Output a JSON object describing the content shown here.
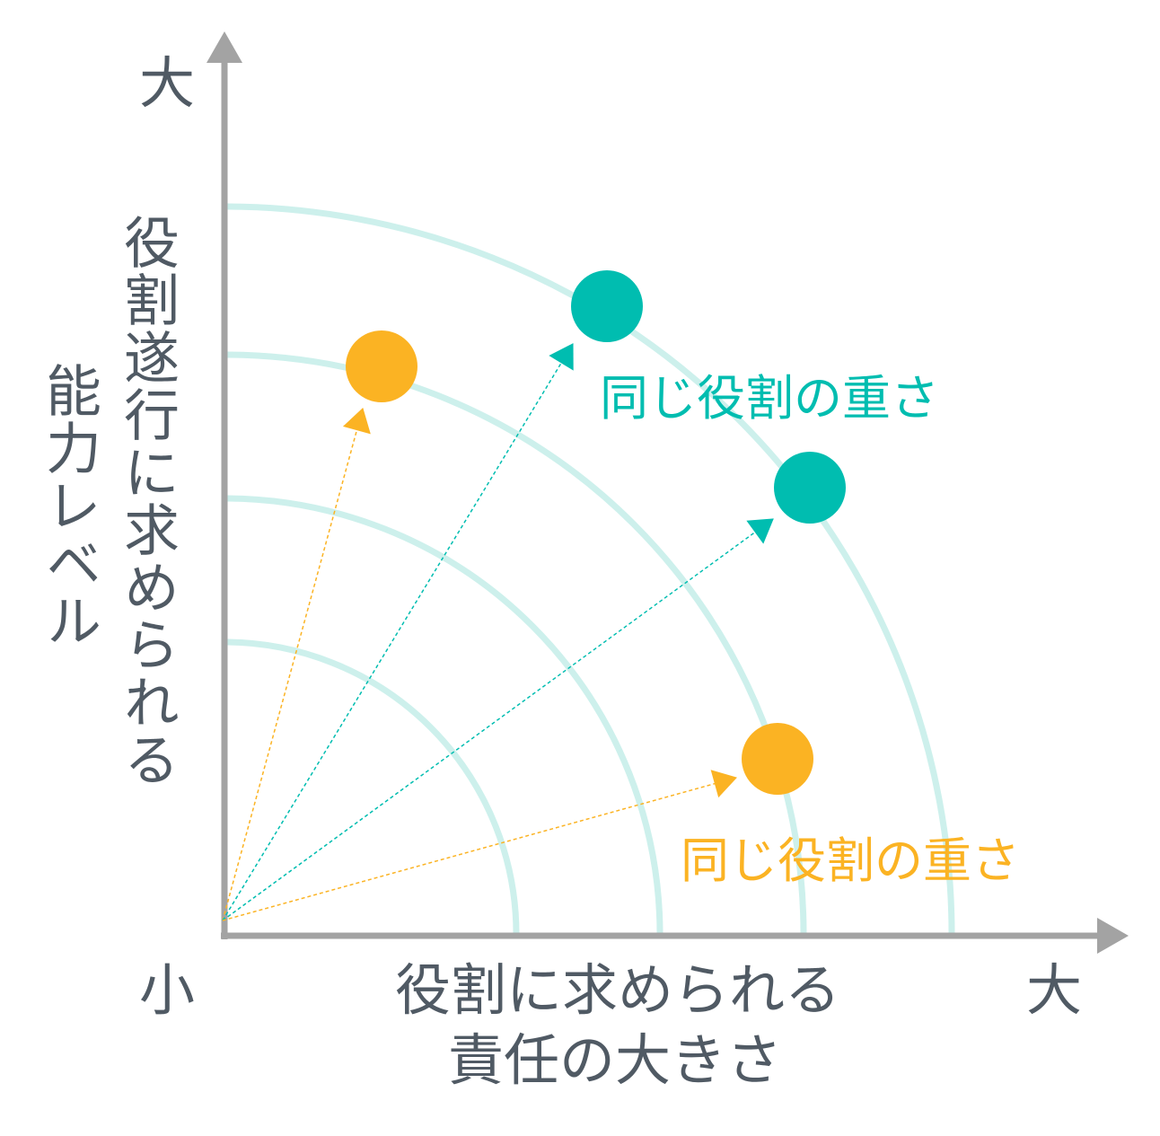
{
  "axes": {
    "y_high": "大",
    "y_label": [
      "役割遂行に求められる",
      "能力レベル"
    ],
    "origin": "小",
    "x_label": [
      "役割に求められる",
      "責任の大きさ"
    ],
    "x_high": "大"
  },
  "annotations": [
    {
      "text": "同じ役割の重さ",
      "color": "#00bdb0"
    },
    {
      "text": "同じ役割の重さ",
      "color": "#fbb323"
    }
  ]
}
